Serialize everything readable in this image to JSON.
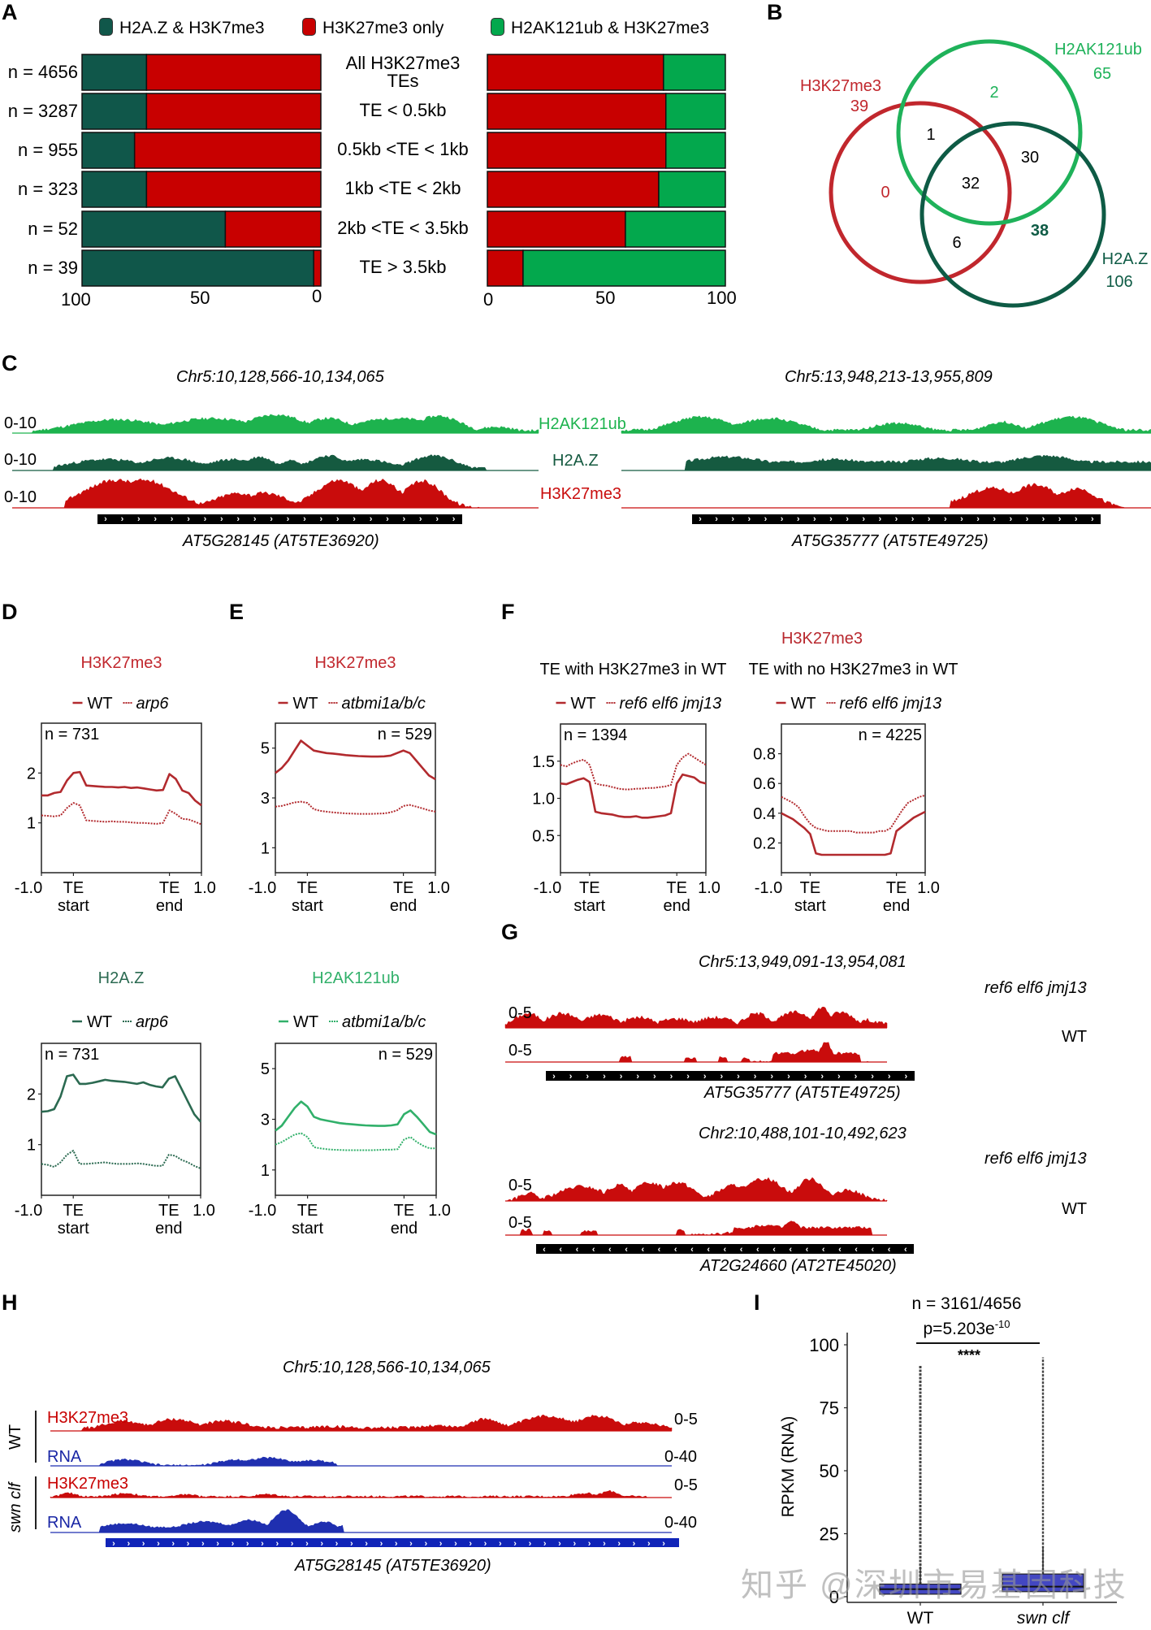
{
  "panels": {
    "A": "A",
    "B": "B",
    "C": "C",
    "D": "D",
    "E": "E",
    "F": "F",
    "G": "G",
    "H": "H",
    "I": "I"
  },
  "colors": {
    "dark_green": "#10574a",
    "red": "#c80000",
    "bright_green": "#03a84d",
    "venn_red": "#c1272d",
    "venn_green": "#1fb25a",
    "venn_dark": "#0e5b45",
    "track_light_green": "#1db34e",
    "track_dark_green": "#155a40",
    "track_red": "#c90c0c",
    "rna_blue": "#1f2fb0",
    "profile_red": "#b22a2e",
    "profile_dark_green": "#2b6a51",
    "profile_light_green": "#31b06a"
  },
  "panel_a": {
    "legend": [
      {
        "label": "H2A.Z & H3K7me3",
        "color_key": "dark_green"
      },
      {
        "label": "H3K27me3 only",
        "color_key": "red"
      },
      {
        "label": "H2AK121ub & H3K27me3",
        "color_key": "bright_green"
      }
    ],
    "left_axis_ticks": [
      "100",
      "50",
      "0"
    ],
    "right_axis_ticks": [
      "0",
      "50",
      "100"
    ]
  },
  "chart_data": [
    {
      "id": "A-left",
      "type": "bar",
      "orientation": "horizontal-stacked",
      "axis_direction": "reversed",
      "xlim": [
        0,
        100
      ],
      "categories": [
        "All H3K27me3 TEs",
        "TE < 0.5kb",
        "0.5kb  <TE < 1kb",
        "1kb <TE < 2kb",
        "2kb <TE < 3.5kb",
        "TE > 3.5kb"
      ],
      "row_labels": [
        "n = 4656",
        "n = 3287",
        "n = 955",
        "n = 323",
        "n = 52",
        "n = 39"
      ],
      "series": [
        {
          "name": "H2A.Z & H3K7me3",
          "values": [
            27,
            27,
            22,
            27,
            60,
            97
          ]
        },
        {
          "name": "H3K27me3 only",
          "values": [
            73,
            73,
            78,
            73,
            40,
            3
          ]
        }
      ]
    },
    {
      "id": "A-right",
      "type": "bar",
      "orientation": "horizontal-stacked",
      "xlim": [
        0,
        100
      ],
      "categories": [
        "All H3K27me3 TEs",
        "TE < 0.5kb",
        "0.5kb  <TE < 1kb",
        "1kb <TE < 2kb",
        "2kb <TE < 3.5kb",
        "TE > 3.5kb"
      ],
      "series": [
        {
          "name": "H3K27me3 only",
          "values": [
            74,
            75,
            75,
            72,
            58,
            15
          ]
        },
        {
          "name": "H2AK121ub & H3K27me3",
          "values": [
            26,
            25,
            25,
            28,
            42,
            85
          ]
        }
      ]
    },
    {
      "id": "B",
      "type": "venn",
      "sets": [
        {
          "name": "H3K27me3",
          "total": "39",
          "color_key": "venn_red"
        },
        {
          "name": "H2AK121ub",
          "total": "65",
          "color_key": "venn_green"
        },
        {
          "name": "H2A.Z",
          "total": "106",
          "color_key": "venn_dark"
        }
      ],
      "regions": {
        "H3K27me3_only": "0",
        "H2AK121ub_only": "2",
        "H2A.Z_only": "38",
        "H3K27me3_H2AK121ub": "1",
        "H2AK121ub_H2A.Z": "30",
        "H3K27me3_H2A.Z": "6",
        "all_three": "32"
      }
    },
    {
      "id": "D-top",
      "type": "line",
      "title": "H3K27me3",
      "title_color_key": "venn_red",
      "legend": [
        "WT",
        "arp6"
      ],
      "annotation": "n = 731",
      "annotation_side": "left",
      "xticks": [
        "-1.0",
        "TE\nstart",
        "TE\nend",
        "1.0"
      ],
      "yticks": [
        1,
        2
      ],
      "ylim": [
        0,
        3
      ],
      "color_key": "profile_red",
      "series": [
        {
          "name": "WT",
          "style": "solid",
          "y": [
            1.55,
            1.55,
            1.6,
            1.62,
            1.85,
            2.0,
            2.02,
            1.75,
            1.74,
            1.73,
            1.72,
            1.72,
            1.71,
            1.72,
            1.7,
            1.71,
            1.69,
            1.67,
            1.65,
            1.66,
            1.98,
            1.88,
            1.65,
            1.6,
            1.45,
            1.35
          ]
        },
        {
          "name": "arp6",
          "style": "dashed",
          "y": [
            1.15,
            1.14,
            1.13,
            1.15,
            1.3,
            1.4,
            1.35,
            1.05,
            1.04,
            1.03,
            1.02,
            1.03,
            1.02,
            1.02,
            1.01,
            1.0,
            1.0,
            0.99,
            0.98,
            1.0,
            1.25,
            1.18,
            1.08,
            1.07,
            1.02,
            0.97
          ]
        }
      ]
    },
    {
      "id": "E-top",
      "type": "line",
      "title": "H3K27me3",
      "title_color_key": "venn_red",
      "legend": [
        "WT",
        "atbmi1a/b/c"
      ],
      "annotation": "n = 529",
      "annotation_side": "right",
      "xticks": [
        "-1.0",
        "TE\nstart",
        "TE\nend",
        "1.0"
      ],
      "yticks": [
        1,
        3,
        5
      ],
      "ylim": [
        0,
        6
      ],
      "color_key": "profile_red",
      "series": [
        {
          "name": "WT",
          "style": "solid",
          "y": [
            4.0,
            4.2,
            4.5,
            4.9,
            5.3,
            5.1,
            4.9,
            4.85,
            4.8,
            4.78,
            4.75,
            4.72,
            4.7,
            4.68,
            4.67,
            4.66,
            4.66,
            4.67,
            4.7,
            4.8,
            4.9,
            4.8,
            4.5,
            4.2,
            3.9,
            3.75
          ]
        },
        {
          "name": "atbmi1a/b/c",
          "style": "dashed",
          "y": [
            2.65,
            2.68,
            2.75,
            2.82,
            2.85,
            2.8,
            2.55,
            2.48,
            2.45,
            2.42,
            2.4,
            2.38,
            2.37,
            2.36,
            2.36,
            2.36,
            2.37,
            2.38,
            2.42,
            2.5,
            2.68,
            2.72,
            2.65,
            2.58,
            2.5,
            2.45
          ]
        }
      ]
    },
    {
      "id": "D-bottom",
      "type": "line",
      "title": "H2A.Z",
      "title_color_key": "profile_dark_green",
      "legend": [
        "WT",
        "arp6"
      ],
      "annotation": "n = 731",
      "annotation_side": "left",
      "xticks": [
        "-1.0",
        "TE\nstart",
        "TE\nend",
        "1.0"
      ],
      "yticks": [
        1,
        2
      ],
      "ylim": [
        0,
        3
      ],
      "color_key": "profile_dark_green",
      "series": [
        {
          "name": "WT",
          "style": "solid",
          "y": [
            1.65,
            1.66,
            1.7,
            1.95,
            2.35,
            2.38,
            2.2,
            2.2,
            2.22,
            2.25,
            2.28,
            2.26,
            2.25,
            2.24,
            2.22,
            2.2,
            2.23,
            2.18,
            2.15,
            2.13,
            2.3,
            2.35,
            2.1,
            1.85,
            1.6,
            1.45
          ]
        },
        {
          "name": "arp6",
          "style": "dashed",
          "y": [
            0.62,
            0.6,
            0.56,
            0.65,
            0.8,
            0.88,
            0.62,
            0.62,
            0.63,
            0.64,
            0.65,
            0.63,
            0.62,
            0.62,
            0.62,
            0.63,
            0.62,
            0.6,
            0.58,
            0.58,
            0.8,
            0.78,
            0.7,
            0.65,
            0.58,
            0.53
          ]
        }
      ]
    },
    {
      "id": "E-bottom",
      "type": "line",
      "title": "H2AK121ub",
      "title_color_key": "profile_light_green",
      "legend": [
        "WT",
        "atbmi1a/b/c"
      ],
      "annotation": "n = 529",
      "annotation_side": "right",
      "xticks": [
        "-1.0",
        "TE\nstart",
        "TE\nend",
        "1.0"
      ],
      "yticks": [
        1,
        3,
        5
      ],
      "ylim": [
        0,
        6
      ],
      "color_key": "profile_light_green",
      "series": [
        {
          "name": "WT",
          "style": "solid",
          "y": [
            2.55,
            2.75,
            3.1,
            3.45,
            3.7,
            3.5,
            3.1,
            3.0,
            2.95,
            2.9,
            2.85,
            2.82,
            2.8,
            2.78,
            2.76,
            2.75,
            2.74,
            2.74,
            2.76,
            2.8,
            3.2,
            3.35,
            3.1,
            2.8,
            2.5,
            2.4
          ]
        },
        {
          "name": "atbmi1a/b/c",
          "style": "dashed",
          "y": [
            2.0,
            2.1,
            2.25,
            2.4,
            2.45,
            2.3,
            1.9,
            1.85,
            1.82,
            1.8,
            1.79,
            1.78,
            1.78,
            1.78,
            1.78,
            1.78,
            1.79,
            1.8,
            1.8,
            1.82,
            2.2,
            2.3,
            2.1,
            1.95,
            1.85,
            1.85
          ]
        }
      ]
    },
    {
      "id": "F-left",
      "type": "line",
      "title": "TE with H3K27me3 in WT",
      "legend": [
        "WT",
        "ref6 elf6 jmj13"
      ],
      "annotation": "n = 1394",
      "annotation_side": "left",
      "xticks": [
        "-1.0",
        "TE\nstart",
        "TE\nend",
        "1.0"
      ],
      "yticks": [
        0.5,
        1.0,
        1.5
      ],
      "ylim": [
        0,
        2.0
      ],
      "color_key": "profile_red",
      "series": [
        {
          "name": "WT",
          "style": "solid",
          "y": [
            1.2,
            1.19,
            1.22,
            1.25,
            1.27,
            1.22,
            0.82,
            0.8,
            0.79,
            0.78,
            0.76,
            0.75,
            0.75,
            0.76,
            0.74,
            0.74,
            0.75,
            0.76,
            0.77,
            0.8,
            1.2,
            1.32,
            1.3,
            1.28,
            1.22,
            1.2
          ]
        },
        {
          "name": "ref6 elf6 jmj13",
          "style": "dashed",
          "y": [
            1.45,
            1.43,
            1.47,
            1.5,
            1.52,
            1.45,
            1.2,
            1.18,
            1.17,
            1.15,
            1.13,
            1.12,
            1.12,
            1.13,
            1.13,
            1.14,
            1.14,
            1.15,
            1.16,
            1.18,
            1.45,
            1.55,
            1.6,
            1.55,
            1.5,
            1.45
          ]
        }
      ]
    },
    {
      "id": "F-right",
      "type": "line",
      "title": "TE with no H3K27me3 in WT",
      "legend": [
        "WT",
        "ref6 elf6 jmj13"
      ],
      "annotation": "n = 4225",
      "annotation_side": "right",
      "xticks": [
        "-1.0",
        "TE\nstart",
        "TE\nend",
        "1.0"
      ],
      "yticks": [
        0.2,
        0.4,
        0.6,
        0.8
      ],
      "ylim": [
        0,
        1.0
      ],
      "color_key": "profile_red",
      "series": [
        {
          "name": "WT",
          "style": "solid",
          "y": [
            0.4,
            0.38,
            0.36,
            0.33,
            0.3,
            0.26,
            0.13,
            0.12,
            0.12,
            0.12,
            0.12,
            0.12,
            0.12,
            0.12,
            0.12,
            0.12,
            0.12,
            0.12,
            0.12,
            0.13,
            0.28,
            0.31,
            0.34,
            0.37,
            0.39,
            0.41
          ]
        },
        {
          "name": "ref6 elf6 jmj13",
          "style": "dashed",
          "y": [
            0.51,
            0.49,
            0.47,
            0.44,
            0.38,
            0.33,
            0.3,
            0.29,
            0.28,
            0.28,
            0.28,
            0.28,
            0.28,
            0.27,
            0.27,
            0.27,
            0.27,
            0.28,
            0.28,
            0.3,
            0.36,
            0.42,
            0.47,
            0.49,
            0.51,
            0.52
          ]
        }
      ]
    },
    {
      "id": "I",
      "type": "box",
      "title": "n = 3161/4656",
      "pvalue_base": "p=5.203e",
      "pvalue_exp": "-10",
      "significance": "****",
      "ylabel": "RPKM (RNA)",
      "categories": [
        "WT",
        "swn clf"
      ],
      "yticks": [
        0,
        25,
        50,
        75,
        100
      ],
      "ylim": [
        -5,
        105
      ],
      "boxes": [
        {
          "name": "WT",
          "q1": 1,
          "median": 3,
          "q3": 5,
          "whisker_high": 12,
          "outliers_max": 92
        },
        {
          "name": "swn clf",
          "q1": 2,
          "median": 4,
          "q3": 9,
          "whisker_high": 20,
          "outliers_max": 95
        }
      ]
    }
  ],
  "panel_c": {
    "regions": [
      {
        "coord": "Chr5:10,128,566-10,134,065",
        "gene": "AT5G28145 (AT5TE36920)"
      },
      {
        "coord": "Chr5:13,948,213-13,955,809",
        "gene": "AT5G35777 (AT5TE49725)"
      }
    ],
    "tracks": [
      {
        "name": "H2AK121ub",
        "scale": "0-10",
        "color_key": "track_light_green"
      },
      {
        "name": "H2A.Z",
        "scale": "0-10",
        "color_key": "track_dark_green"
      },
      {
        "name": "H3K27me3",
        "scale": "0-10",
        "color_key": "track_red"
      }
    ]
  },
  "panel_f": {
    "header": "H3K27me3"
  },
  "panel_g": {
    "regions": [
      {
        "coord": "Chr5:13,949,091-13,954,081",
        "gene": "AT5G35777 (AT5TE49725)",
        "direction": "forward"
      },
      {
        "coord": "Chr2:10,488,101-10,492,623",
        "gene": "AT2G24660 (AT2TE45020)",
        "direction": "reverse"
      }
    ],
    "tracks": [
      {
        "name": "ref6 elf6 jmj13",
        "scale": "0-5"
      },
      {
        "name": "WT",
        "scale": "0-5"
      }
    ]
  },
  "panel_h": {
    "coord": "Chr5:10,128,566-10,134,065",
    "gene": "AT5G28145 (AT5TE36920)",
    "groups": [
      {
        "name": "WT",
        "tracks": [
          {
            "name": "H3K27me3",
            "scale": "0-5"
          },
          {
            "name": "RNA",
            "scale": "0-40"
          }
        ]
      },
      {
        "name": "swn clf",
        "tracks": [
          {
            "name": "H3K27me3",
            "scale": "0-5"
          },
          {
            "name": "RNA",
            "scale": "0-40"
          }
        ]
      }
    ]
  },
  "watermark": "知乎 @深圳市易基因科技"
}
